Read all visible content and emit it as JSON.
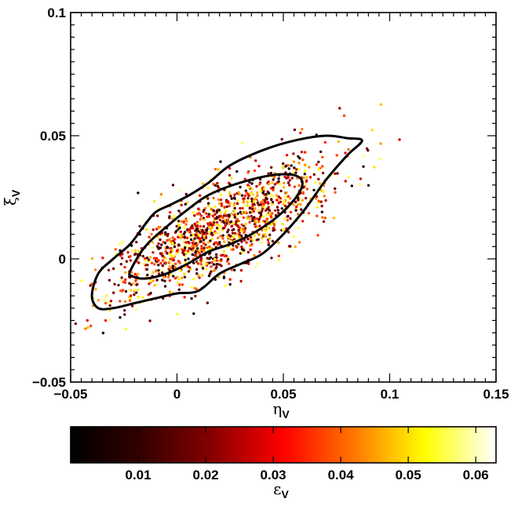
{
  "chart_data": {
    "type": "scatter",
    "title": "",
    "xlabel": {
      "symbol": "η",
      "subscript": "V"
    },
    "ylabel": {
      "symbol": "ξ",
      "subscript": "V"
    },
    "xlim": [
      -0.05,
      0.15
    ],
    "ylim": [
      -0.05,
      0.1
    ],
    "x_ticks": [
      -0.05,
      0,
      0.05,
      0.1,
      0.15
    ],
    "x_tick_labels": [
      "−0.05",
      "0",
      "0.05",
      "0.1",
      "0.15"
    ],
    "y_ticks": [
      -0.05,
      0,
      0.05,
      0.1
    ],
    "y_tick_labels": [
      "−0.05",
      "0",
      "0.05",
      "0.1"
    ],
    "grid": false,
    "point_distribution": {
      "n_points": 1400,
      "center": [
        0.02,
        0.012
      ],
      "major_axis_slope": 0.47,
      "major_sigma": 0.029,
      "minor_sigma": 0.0085
    },
    "contours": [
      {
        "name": "inner",
        "points": [
          [
            -0.022,
            -0.005
          ],
          [
            -0.015,
            0.005
          ],
          [
            -0.005,
            0.013
          ],
          [
            0.005,
            0.02
          ],
          [
            0.015,
            0.026
          ],
          [
            0.03,
            0.031
          ],
          [
            0.045,
            0.034
          ],
          [
            0.055,
            0.034
          ],
          [
            0.059,
            0.031
          ],
          [
            0.056,
            0.025
          ],
          [
            0.047,
            0.017
          ],
          [
            0.035,
            0.01
          ],
          [
            0.025,
            0.006
          ],
          [
            0.015,
            0.003
          ],
          [
            0.005,
            -0.002
          ],
          [
            -0.005,
            -0.006
          ],
          [
            -0.015,
            -0.008
          ],
          [
            -0.021,
            -0.007
          ]
        ]
      },
      {
        "name": "outer",
        "points": [
          [
            -0.04,
            -0.015
          ],
          [
            -0.037,
            -0.006
          ],
          [
            -0.03,
            0.0
          ],
          [
            -0.022,
            0.006
          ],
          [
            -0.015,
            0.014
          ],
          [
            -0.01,
            0.019
          ],
          [
            -0.003,
            0.022
          ],
          [
            0.006,
            0.026
          ],
          [
            0.015,
            0.031
          ],
          [
            0.025,
            0.038
          ],
          [
            0.04,
            0.044
          ],
          [
            0.055,
            0.048
          ],
          [
            0.07,
            0.05
          ],
          [
            0.08,
            0.049
          ],
          [
            0.087,
            0.048
          ],
          [
            0.08,
            0.042
          ],
          [
            0.07,
            0.032
          ],
          [
            0.06,
            0.02
          ],
          [
            0.05,
            0.01
          ],
          [
            0.04,
            0.002
          ],
          [
            0.03,
            -0.002
          ],
          [
            0.02,
            -0.006
          ],
          [
            0.01,
            -0.013
          ],
          [
            0.0,
            -0.014
          ],
          [
            -0.01,
            -0.016
          ],
          [
            -0.02,
            -0.018
          ],
          [
            -0.03,
            -0.02
          ],
          [
            -0.037,
            -0.02
          ]
        ]
      }
    ],
    "colorbar": {
      "label": {
        "symbol": "ε",
        "subscript": "V"
      },
      "range": [
        0,
        0.063
      ],
      "ticks": [
        0.01,
        0.02,
        0.03,
        0.04,
        0.05,
        0.06
      ],
      "tick_labels": [
        "0.01",
        "0.02",
        "0.03",
        "0.04",
        "0.05",
        "0.06"
      ],
      "colormap": "hot",
      "colormap_stops": [
        "#000000",
        "#330000",
        "#880000",
        "#ff0000",
        "#ff7700",
        "#ffff00",
        "#ffffff"
      ]
    }
  }
}
